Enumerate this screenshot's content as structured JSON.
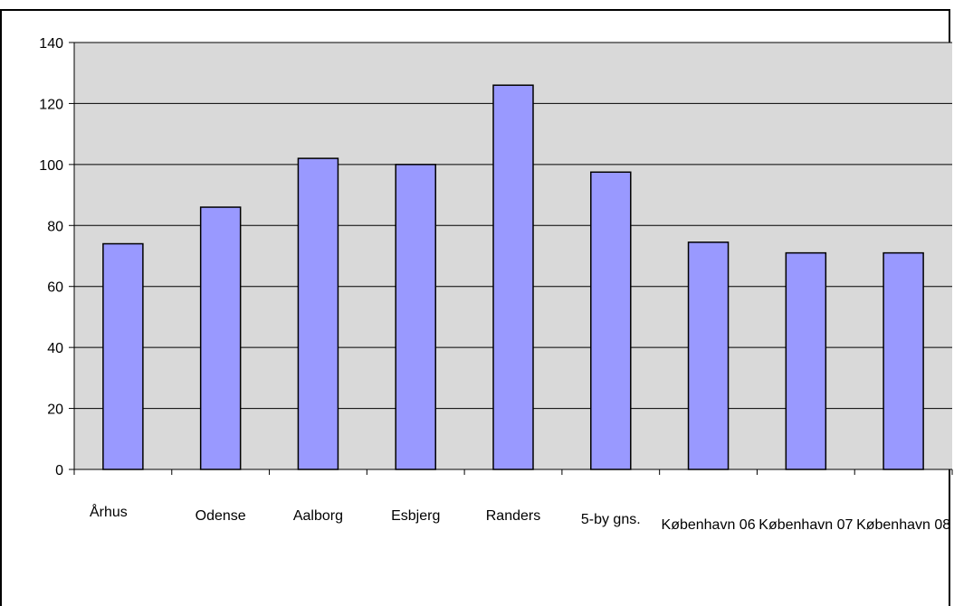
{
  "chart_data": {
    "type": "bar",
    "title": "",
    "xlabel": "",
    "ylabel": "",
    "ylim": [
      0,
      140
    ],
    "yticks": [
      0,
      20,
      40,
      60,
      80,
      100,
      120,
      140
    ],
    "grid": true,
    "legend": false,
    "categories": [
      "Århus",
      "Odense",
      "Aalborg",
      "Esbjerg",
      "Randers",
      "5-by gns.",
      "København 06",
      "København 07",
      "København 08"
    ],
    "values": [
      74,
      86,
      102,
      100,
      126,
      97.5,
      74.5,
      71,
      71
    ],
    "colors": {
      "plot_background": "#d9d9d9",
      "bar_fill": "#9999ff",
      "bar_stroke": "#000000",
      "gridline": "#000000"
    }
  }
}
